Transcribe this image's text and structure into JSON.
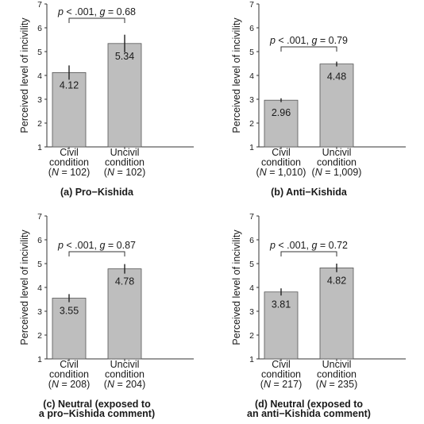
{
  "chart_data": [
    {
      "type": "bar",
      "panel_label": "(a) Pro−Kishida",
      "panel_label_lines": [
        "(a) Pro−Kishida"
      ],
      "ylabel": "Perceived level of incivility",
      "ylim": [
        1,
        7
      ],
      "yticks": [
        1,
        2,
        3,
        4,
        5,
        6,
        7
      ],
      "categories": [
        {
          "lines": [
            "Civil",
            "condition",
            "(N = 102)"
          ],
          "n_value": "102"
        },
        {
          "lines": [
            "Uncivil",
            "condition",
            "(N = 102)"
          ],
          "n_value": "102"
        }
      ],
      "values": [
        4.12,
        5.34
      ],
      "value_labels": [
        "4.12",
        "5.34"
      ],
      "error_bars": [
        [
          3.82,
          4.42
        ],
        [
          4.97,
          5.71
        ]
      ],
      "significance": {
        "p_text": "p < .001, g = 0.68",
        "p": "< .001",
        "g": "0.68",
        "bracket_y": 6.4
      },
      "bar_color": "#bebebe",
      "grid": false
    },
    {
      "type": "bar",
      "panel_label": "(b) Anti−Kishida",
      "panel_label_lines": [
        "(b) Anti−Kishida"
      ],
      "ylabel": "Perceived level of incivility",
      "ylim": [
        1,
        7
      ],
      "yticks": [
        1,
        2,
        3,
        4,
        5,
        6,
        7
      ],
      "categories": [
        {
          "lines": [
            "Civil",
            "condition",
            "(N = 1,010)"
          ],
          "n_value": "1,010"
        },
        {
          "lines": [
            "Uncivil",
            "condition",
            "(N = 1,009)"
          ],
          "n_value": "1,009"
        }
      ],
      "values": [
        2.96,
        4.48
      ],
      "value_labels": [
        "2.96",
        "4.48"
      ],
      "error_bars": [
        [
          2.88,
          3.04
        ],
        [
          4.38,
          4.58
        ]
      ],
      "significance": {
        "p_text": "p < .001, g = 0.79",
        "p": "< .001",
        "g": "0.79",
        "bracket_y": 5.2
      },
      "bar_color": "#bebebe",
      "grid": false
    },
    {
      "type": "bar",
      "panel_label": "(c) Neutral (exposed to a pro−Kishida comment)",
      "panel_label_lines": [
        "(c) Neutral (exposed to",
        "a pro−Kishida comment)"
      ],
      "ylabel": "Perceived level of incivility",
      "ylim": [
        1,
        7
      ],
      "yticks": [
        1,
        2,
        3,
        4,
        5,
        6,
        7
      ],
      "categories": [
        {
          "lines": [
            "Civil",
            "condition",
            "(N = 208)"
          ],
          "n_value": "208"
        },
        {
          "lines": [
            "Uncivil",
            "condition",
            "(N = 204)"
          ],
          "n_value": "204"
        }
      ],
      "values": [
        3.55,
        4.78
      ],
      "value_labels": [
        "3.55",
        "4.78"
      ],
      "error_bars": [
        [
          3.38,
          3.72
        ],
        [
          4.58,
          4.98
        ]
      ],
      "significance": {
        "p_text": "p < .001, g = 0.87",
        "p": "< .001",
        "g": "0.87",
        "bracket_y": 5.5
      },
      "bar_color": "#bebebe",
      "grid": false
    },
    {
      "type": "bar",
      "panel_label": "(d) Neutral (exposed to an anti−Kishida comment)",
      "panel_label_lines": [
        "(d) Neutral (exposed to",
        "an anti−Kishida comment)"
      ],
      "ylabel": "Perceived level of incivility",
      "ylim": [
        1,
        7
      ],
      "yticks": [
        1,
        2,
        3,
        4,
        5,
        6,
        7
      ],
      "categories": [
        {
          "lines": [
            "Civil",
            "condition",
            "(N = 217)"
          ],
          "n_value": "217"
        },
        {
          "lines": [
            "Uncivil",
            "condition",
            "(N = 235)"
          ],
          "n_value": "235"
        }
      ],
      "values": [
        3.81,
        4.82
      ],
      "value_labels": [
        "3.81",
        "4.82"
      ],
      "error_bars": [
        [
          3.66,
          3.96
        ],
        [
          4.64,
          5.0
        ]
      ],
      "significance": {
        "p_text": "p < .001, g = 0.72",
        "p": "< .001",
        "g": "0.72",
        "bracket_y": 5.5
      },
      "bar_color": "#bebebe",
      "grid": false
    }
  ]
}
